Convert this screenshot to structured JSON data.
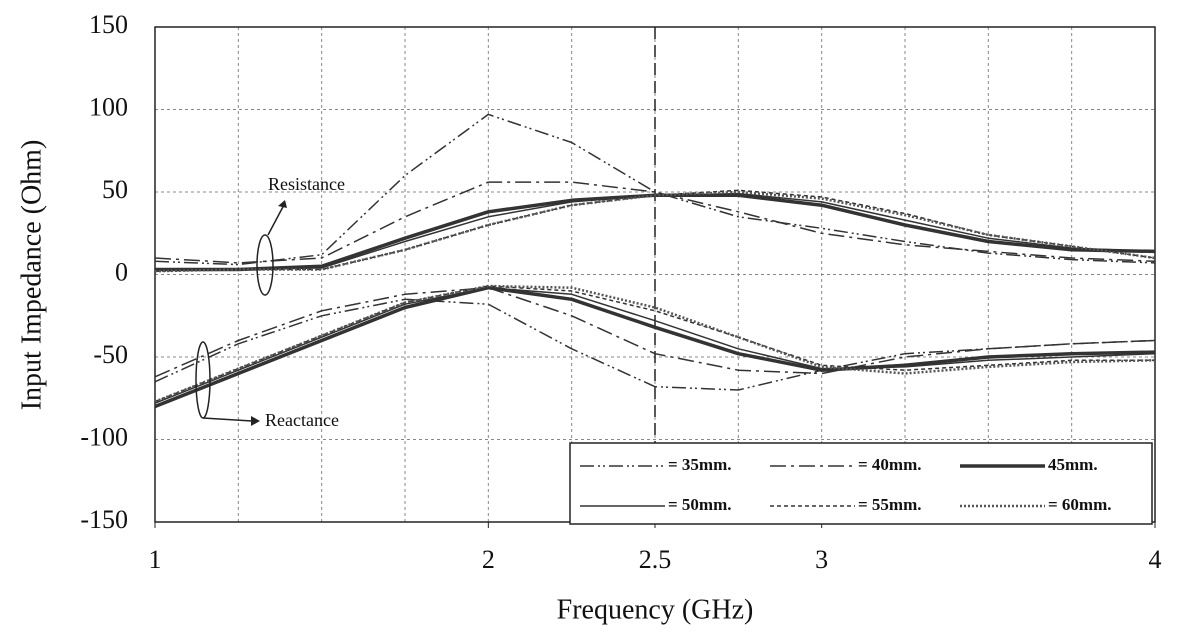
{
  "chart_data": {
    "type": "line",
    "x_label": "Frequency (GHz)",
    "y_label": "Input Impedance (Ohm)",
    "x": [
      1,
      1.25,
      1.5,
      1.75,
      2,
      2.25,
      2.5,
      2.75,
      3,
      3.25,
      3.5,
      3.75,
      4
    ],
    "xlim": [
      1,
      4
    ],
    "xticks": [
      1,
      2,
      2.5,
      3,
      4
    ],
    "xgrid": [
      1.25,
      1.5,
      1.75,
      2,
      2.25,
      2.5,
      2.75,
      3,
      3.25,
      3.5,
      3.75
    ],
    "ylim": [
      -150,
      150
    ],
    "yticks": [
      -150,
      -100,
      -50,
      0,
      50,
      100,
      150
    ],
    "grid": true,
    "vline": 2.5,
    "annotations": {
      "resistance": "Resistance",
      "reactance": "Reactance"
    },
    "series": [
      {
        "name": "= 35mm.",
        "color": "#333",
        "dash": "14 4 2 3 2 4",
        "width": 1.5,
        "resistance": [
          8,
          6,
          12,
          60,
          97,
          80,
          50,
          35,
          28,
          20,
          13,
          9,
          7
        ],
        "reactance": [
          -65,
          -42,
          -25,
          -15,
          -18,
          -45,
          -68,
          -70,
          -58,
          -48,
          -45,
          -42,
          -40
        ]
      },
      {
        "name": "= 40mm.",
        "color": "#333",
        "dash": "16 5 3 5",
        "width": 1.5,
        "resistance": [
          10,
          7,
          10,
          35,
          56,
          56,
          50,
          38,
          25,
          18,
          14,
          10,
          8
        ],
        "reactance": [
          -62,
          -40,
          -22,
          -12,
          -8,
          -25,
          -48,
          -58,
          -60,
          -50,
          -45,
          -42,
          -40
        ]
      },
      {
        "name": "45mm.",
        "color": "#333",
        "dash": "none",
        "width": 3.5,
        "resistance": [
          3,
          3,
          5,
          22,
          38,
          45,
          48,
          48,
          42,
          30,
          20,
          15,
          14
        ],
        "reactance": [
          -80,
          -60,
          -40,
          -20,
          -8,
          -15,
          -32,
          -48,
          -58,
          -55,
          -50,
          -48,
          -47
        ]
      },
      {
        "name": "= 50mm.",
        "color": "#333",
        "dash": "none",
        "width": 1.5,
        "resistance": [
          3,
          3,
          4,
          20,
          35,
          44,
          48,
          49,
          44,
          33,
          22,
          16,
          14
        ],
        "reactance": [
          -78,
          -58,
          -38,
          -18,
          -8,
          -12,
          -28,
          -45,
          -57,
          -56,
          -52,
          -50,
          -48
        ]
      },
      {
        "name": "= 55mm.",
        "color": "#333",
        "dash": "4 3",
        "width": 1.5,
        "resistance": [
          2,
          3,
          3,
          15,
          30,
          42,
          48,
          51,
          47,
          37,
          24,
          17,
          10
        ],
        "reactance": [
          -77,
          -57,
          -37,
          -17,
          -7,
          -10,
          -22,
          -38,
          -55,
          -58,
          -55,
          -52,
          -52
        ]
      },
      {
        "name": "= 60mm.",
        "color": "#555",
        "dash": "2 2",
        "width": 2.5,
        "resistance": [
          2,
          3,
          3,
          15,
          30,
          42,
          48,
          50,
          46,
          36,
          24,
          17,
          10
        ],
        "reactance": [
          -77,
          -57,
          -37,
          -17,
          -7,
          -8,
          -20,
          -38,
          -56,
          -60,
          -56,
          -53,
          -52
        ]
      }
    ]
  }
}
